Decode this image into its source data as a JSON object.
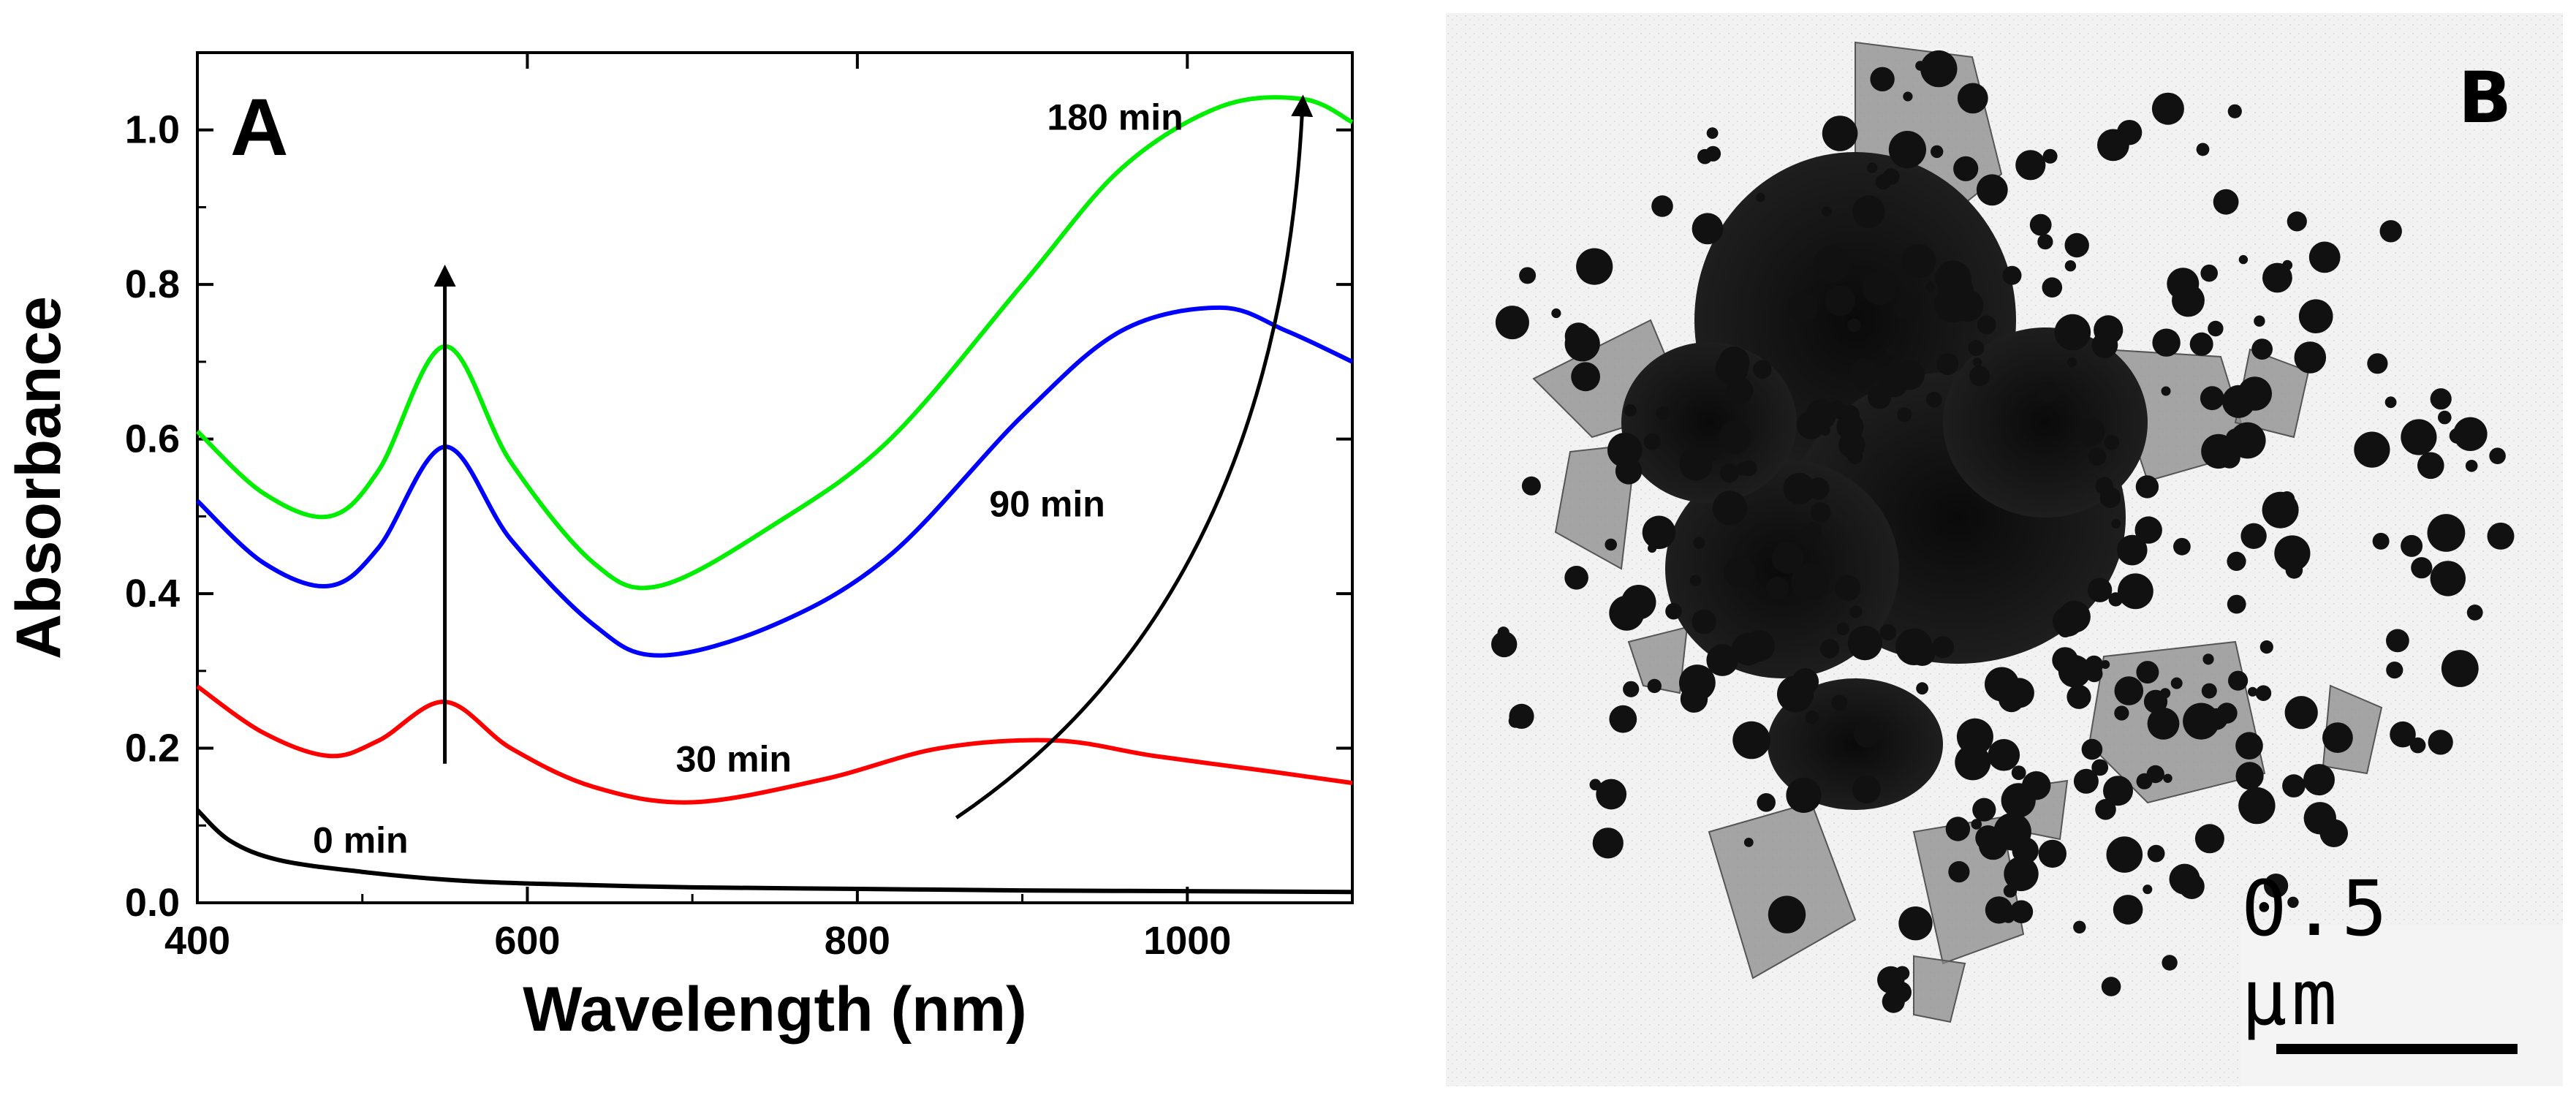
{
  "panel_a": {
    "letter": "A"
  },
  "panel_b": {
    "letter": "B",
    "scale_bar_label": "0.5 μm"
  },
  "colors": {
    "series_0": "#000000",
    "series_30": "#ff0000",
    "series_90": "#0000ff",
    "series_180": "#00ee00",
    "background": "#ffffff"
  },
  "chart_data": {
    "type": "line",
    "title": "",
    "xlabel": "Wavelength (nm)",
    "ylabel": "Absorbance",
    "xlim": [
      400,
      1100
    ],
    "ylim": [
      0.0,
      1.1
    ],
    "xticks": [
      "400",
      "600",
      "800",
      "1000"
    ],
    "yticks": [
      "0.0",
      "0.2",
      "0.4",
      "0.6",
      "0.8",
      "1.0"
    ],
    "grid": false,
    "legend": "none",
    "series": [
      {
        "name": "0 min",
        "x": [
          400,
          420,
          450,
          500,
          550,
          600,
          700,
          800,
          900,
          1000,
          1100
        ],
        "y": [
          0.12,
          0.08,
          0.055,
          0.04,
          0.03,
          0.025,
          0.02,
          0.018,
          0.016,
          0.015,
          0.014
        ]
      },
      {
        "name": "30 min",
        "x": [
          400,
          440,
          480,
          510,
          550,
          590,
          640,
          700,
          780,
          850,
          920,
          980,
          1050,
          1100
        ],
        "y": [
          0.28,
          0.22,
          0.19,
          0.21,
          0.26,
          0.2,
          0.15,
          0.13,
          0.16,
          0.2,
          0.21,
          0.19,
          0.17,
          0.155
        ]
      },
      {
        "name": "90 min",
        "x": [
          400,
          440,
          480,
          510,
          550,
          590,
          640,
          680,
          750,
          820,
          900,
          960,
          1020,
          1060,
          1100
        ],
        "y": [
          0.52,
          0.44,
          0.41,
          0.46,
          0.59,
          0.47,
          0.36,
          0.32,
          0.36,
          0.45,
          0.63,
          0.74,
          0.77,
          0.74,
          0.7
        ]
      },
      {
        "name": "180 min",
        "x": [
          400,
          440,
          480,
          510,
          550,
          590,
          640,
          680,
          750,
          820,
          900,
          960,
          1020,
          1070,
          1100
        ],
        "y": [
          0.61,
          0.53,
          0.5,
          0.56,
          0.72,
          0.57,
          0.44,
          0.41,
          0.49,
          0.6,
          0.8,
          0.95,
          1.03,
          1.04,
          1.01
        ]
      }
    ],
    "annotations": [
      {
        "text": "0 min",
        "x": 470,
        "y": 0.065
      },
      {
        "text": "30 min",
        "x": 690,
        "y": 0.17
      },
      {
        "text": "90 min",
        "x": 880,
        "y": 0.5
      },
      {
        "text": "180 min",
        "x": 915,
        "y": 1.0
      }
    ],
    "arrows": [
      {
        "from": [
          550,
          0.18
        ],
        "to": [
          550,
          0.82
        ]
      },
      {
        "from": [
          860,
          0.11
        ],
        "to": [
          1070,
          1.04
        ],
        "curved": true
      }
    ]
  }
}
